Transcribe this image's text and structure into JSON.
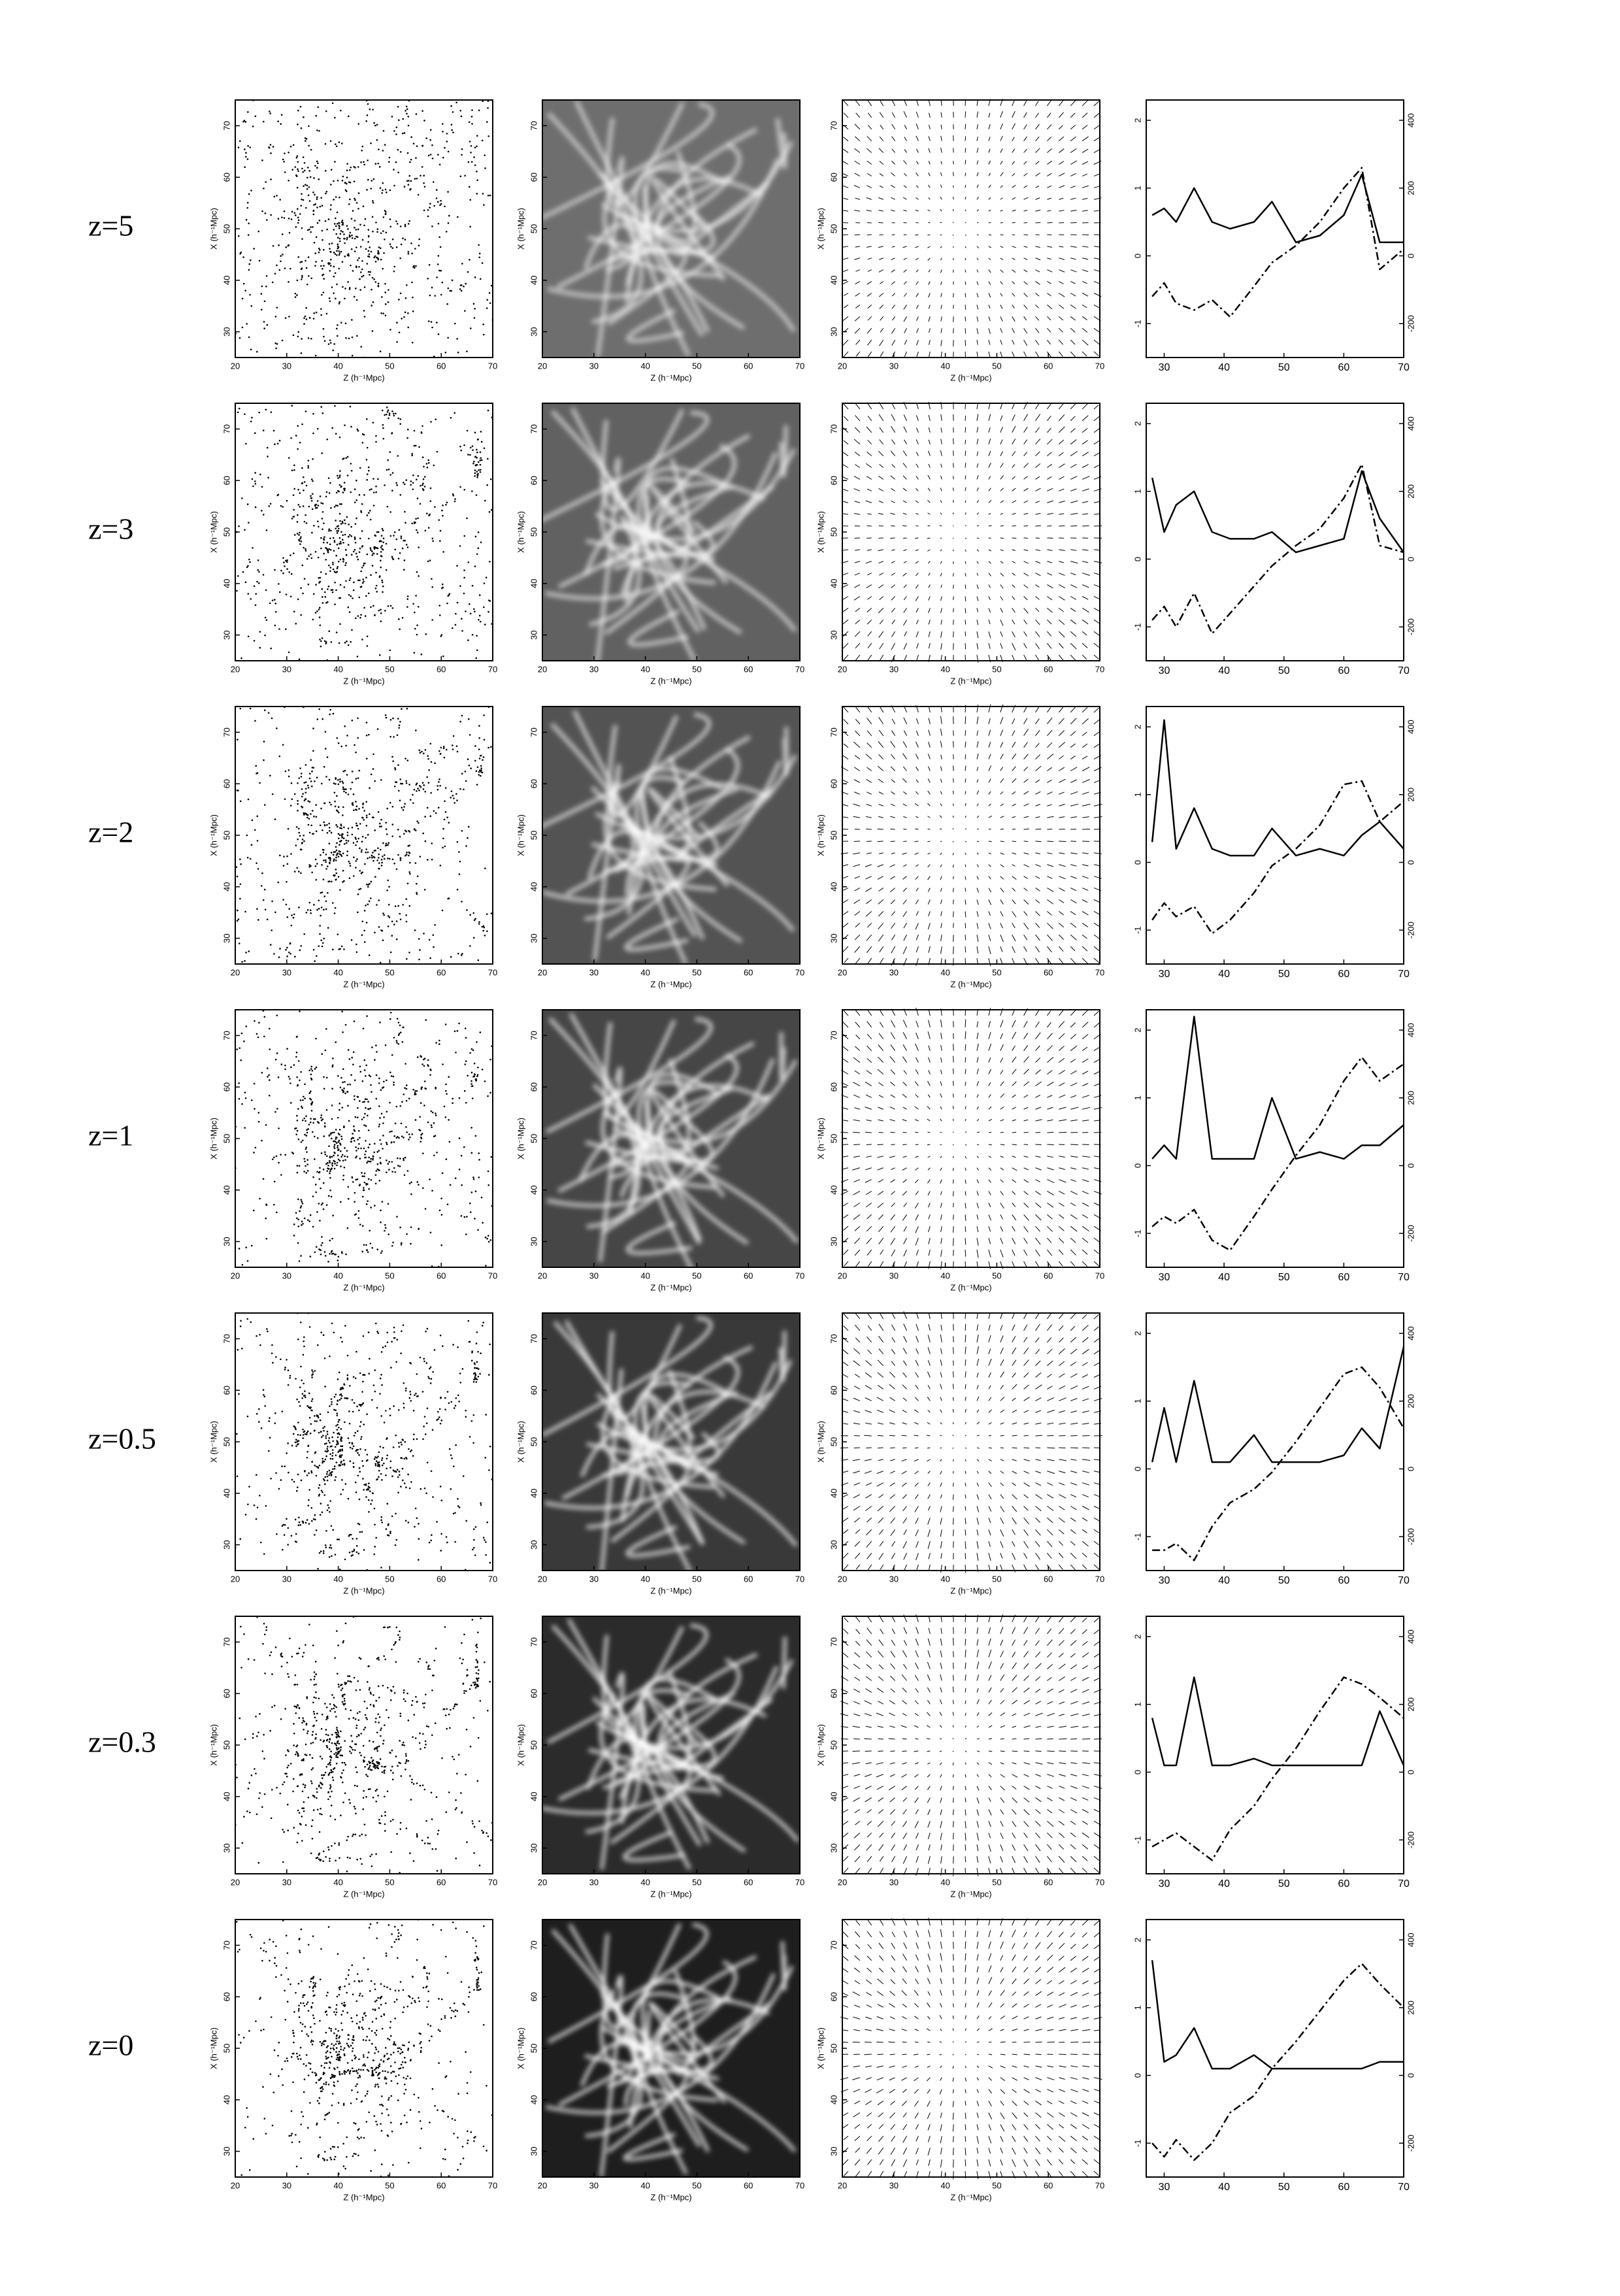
{
  "row_labels": [
    "z=5",
    "z=3",
    "z=2",
    "z=1",
    "z=0.5",
    "z=0.3",
    "z=0"
  ],
  "map_axes": {
    "xlim": [
      20,
      70
    ],
    "xticks": [
      20,
      30,
      40,
      50,
      60,
      70
    ],
    "ylim": [
      25,
      75
    ],
    "yticks": [
      30,
      40,
      50,
      60,
      70
    ],
    "xlabel": "Z (h⁻¹Mpc)",
    "ylabel": "X (h⁻¹Mpc)"
  },
  "chart_data": [
    {
      "type": "line",
      "x": [
        28,
        30,
        32,
        35,
        38,
        41,
        45,
        48,
        52,
        56,
        60,
        63,
        66,
        70
      ],
      "xlim": [
        27,
        70
      ],
      "xticks": [
        30,
        40,
        50,
        60,
        70
      ],
      "ylim": [
        -1.5,
        2.3
      ],
      "yticks": [
        -1,
        0,
        1,
        2
      ],
      "y2lim": [
        -300,
        460
      ],
      "y2ticks": [
        -200,
        0,
        200,
        400
      ],
      "series": [
        {
          "color": "#000000",
          "values": [
            0.6,
            0.7,
            0.5,
            1.0,
            0.5,
            0.4,
            0.5,
            0.8,
            0.2,
            0.3,
            0.6,
            1.2,
            0.2,
            0.2
          ]
        },
        {
          "color": "#000000",
          "axis": "y2",
          "values": [
            -120,
            -80,
            -140,
            -160,
            -130,
            -180,
            -90,
            -20,
            30,
            100,
            200,
            260,
            -40,
            20
          ]
        }
      ]
    },
    {
      "type": "line",
      "x": [
        28,
        30,
        32,
        35,
        38,
        41,
        45,
        48,
        52,
        56,
        60,
        63,
        66,
        70
      ],
      "xlim": [
        27,
        70
      ],
      "xticks": [
        30,
        40,
        50,
        60,
        70
      ],
      "ylim": [
        -1.5,
        2.3
      ],
      "yticks": [
        -1,
        0,
        1,
        2
      ],
      "y2lim": [
        -300,
        460
      ],
      "y2ticks": [
        -200,
        0,
        200,
        400
      ],
      "series": [
        {
          "color": "#000000",
          "values": [
            1.2,
            0.4,
            0.8,
            1.0,
            0.4,
            0.3,
            0.3,
            0.4,
            0.1,
            0.2,
            0.3,
            1.3,
            0.6,
            0.1
          ]
        },
        {
          "color": "#000000",
          "axis": "y2",
          "values": [
            -180,
            -140,
            -200,
            -100,
            -220,
            -160,
            -80,
            -20,
            40,
            90,
            180,
            280,
            40,
            20
          ]
        }
      ]
    },
    {
      "type": "line",
      "x": [
        28,
        30,
        32,
        35,
        38,
        41,
        45,
        48,
        52,
        56,
        60,
        63,
        66,
        70
      ],
      "xlim": [
        27,
        70
      ],
      "xticks": [
        30,
        40,
        50,
        60,
        70
      ],
      "ylim": [
        -1.5,
        2.3
      ],
      "yticks": [
        -1,
        0,
        1,
        2
      ],
      "y2lim": [
        -300,
        460
      ],
      "y2ticks": [
        -200,
        0,
        200,
        400
      ],
      "series": [
        {
          "color": "#000000",
          "values": [
            0.3,
            2.1,
            0.2,
            0.8,
            0.2,
            0.1,
            0.1,
            0.5,
            0.1,
            0.2,
            0.1,
            0.4,
            0.6,
            0.2
          ]
        },
        {
          "color": "#000000",
          "axis": "y2",
          "values": [
            -170,
            -120,
            -160,
            -130,
            -210,
            -170,
            -90,
            -10,
            40,
            110,
            230,
            240,
            120,
            180
          ]
        }
      ]
    },
    {
      "type": "line",
      "x": [
        28,
        30,
        32,
        35,
        38,
        41,
        45,
        48,
        52,
        56,
        60,
        63,
        66,
        70
      ],
      "xlim": [
        27,
        70
      ],
      "xticks": [
        30,
        40,
        50,
        60,
        70
      ],
      "ylim": [
        -1.5,
        2.3
      ],
      "yticks": [
        -1,
        0,
        1,
        2
      ],
      "y2lim": [
        -300,
        460
      ],
      "y2ticks": [
        -200,
        0,
        200,
        400
      ],
      "series": [
        {
          "color": "#000000",
          "values": [
            0.1,
            0.3,
            0.1,
            2.2,
            0.1,
            0.1,
            0.1,
            1.0,
            0.1,
            0.2,
            0.1,
            0.3,
            0.3,
            0.6
          ]
        },
        {
          "color": "#000000",
          "axis": "y2",
          "values": [
            -180,
            -150,
            -170,
            -130,
            -220,
            -250,
            -150,
            -70,
            30,
            120,
            250,
            320,
            250,
            300
          ]
        }
      ]
    },
    {
      "type": "line",
      "x": [
        28,
        30,
        32,
        35,
        38,
        41,
        45,
        48,
        52,
        56,
        60,
        63,
        66,
        70
      ],
      "xlim": [
        27,
        70
      ],
      "xticks": [
        30,
        40,
        50,
        60,
        70
      ],
      "ylim": [
        -1.5,
        2.3
      ],
      "yticks": [
        -1,
        0,
        1,
        2
      ],
      "y2lim": [
        -300,
        460
      ],
      "y2ticks": [
        -200,
        0,
        200,
        400
      ],
      "series": [
        {
          "color": "#000000",
          "values": [
            0.1,
            0.9,
            0.1,
            1.3,
            0.1,
            0.1,
            0.5,
            0.1,
            0.1,
            0.1,
            0.2,
            0.6,
            0.3,
            1.8
          ]
        },
        {
          "color": "#000000",
          "axis": "y2",
          "values": [
            -240,
            -240,
            -220,
            -270,
            -170,
            -100,
            -60,
            -10,
            80,
            180,
            280,
            300,
            240,
            120
          ]
        }
      ]
    },
    {
      "type": "line",
      "x": [
        28,
        30,
        32,
        35,
        38,
        41,
        45,
        48,
        52,
        56,
        60,
        63,
        66,
        70
      ],
      "xlim": [
        27,
        70
      ],
      "xticks": [
        30,
        40,
        50,
        60,
        70
      ],
      "ylim": [
        -1.5,
        2.3
      ],
      "yticks": [
        -1,
        0,
        1,
        2
      ],
      "y2lim": [
        -300,
        460
      ],
      "y2ticks": [
        -200,
        0,
        200,
        400
      ],
      "series": [
        {
          "color": "#000000",
          "values": [
            0.8,
            0.1,
            0.1,
            1.4,
            0.1,
            0.1,
            0.2,
            0.1,
            0.1,
            0.1,
            0.1,
            0.1,
            0.9,
            0.1
          ]
        },
        {
          "color": "#000000",
          "axis": "y2",
          "values": [
            -220,
            -200,
            -180,
            -220,
            -260,
            -170,
            -100,
            -20,
            70,
            180,
            280,
            260,
            220,
            160
          ]
        }
      ]
    },
    {
      "type": "line",
      "x": [
        28,
        30,
        32,
        35,
        38,
        41,
        45,
        48,
        52,
        56,
        60,
        63,
        66,
        70
      ],
      "xlim": [
        27,
        70
      ],
      "xticks": [
        30,
        40,
        50,
        60,
        70
      ],
      "ylim": [
        -1.5,
        2.3
      ],
      "yticks": [
        -1,
        0,
        1,
        2
      ],
      "y2lim": [
        -300,
        460
      ],
      "y2ticks": [
        -200,
        0,
        200,
        400
      ],
      "series": [
        {
          "color": "#000000",
          "values": [
            1.7,
            0.2,
            0.3,
            0.7,
            0.1,
            0.1,
            0.3,
            0.1,
            0.1,
            0.1,
            0.1,
            0.1,
            0.2,
            0.2
          ]
        },
        {
          "color": "#000000",
          "axis": "y2",
          "values": [
            -200,
            -240,
            -190,
            -250,
            -200,
            -110,
            -60,
            20,
            100,
            190,
            280,
            330,
            270,
            200
          ]
        }
      ]
    }
  ]
}
